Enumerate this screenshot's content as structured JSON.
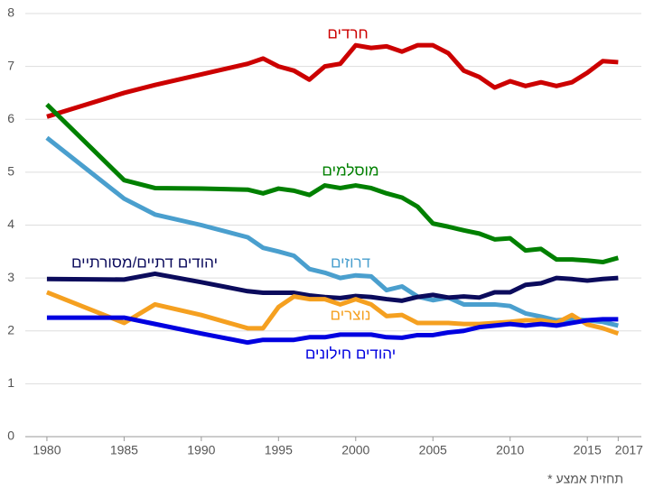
{
  "chart_data": {
    "type": "line",
    "x": [
      1980,
      1985,
      1987,
      1990,
      1993,
      1994,
      1995,
      1996,
      1997,
      1998,
      1999,
      2000,
      2001,
      2002,
      2003,
      2004,
      2005,
      2006,
      2007,
      2008,
      2009,
      2010,
      2011,
      2012,
      2013,
      2014,
      2015,
      2016,
      2017
    ],
    "series": [
      {
        "name": "חרדים",
        "color": "#cc0000",
        "values": [
          6.05,
          6.5,
          6.65,
          6.85,
          7.05,
          7.15,
          7.0,
          6.92,
          6.75,
          7.0,
          7.05,
          7.4,
          7.35,
          7.38,
          7.28,
          7.4,
          7.4,
          7.25,
          6.92,
          6.8,
          6.6,
          6.72,
          6.63,
          6.7,
          6.63,
          6.7,
          6.88,
          7.1,
          7.08
        ]
      },
      {
        "name": "מוסלמים",
        "color": "#008000",
        "values": [
          6.28,
          4.85,
          4.7,
          4.69,
          4.67,
          4.6,
          4.69,
          4.65,
          4.57,
          4.75,
          4.7,
          4.75,
          4.7,
          4.6,
          4.52,
          4.35,
          4.03,
          3.97,
          3.9,
          3.84,
          3.73,
          3.75,
          3.52,
          3.55,
          3.35,
          3.35,
          3.33,
          3.3,
          3.38
        ]
      },
      {
        "name": "דרוזים",
        "color": "#4a9fce",
        "values": [
          5.65,
          4.5,
          4.2,
          4.0,
          3.77,
          3.57,
          3.5,
          3.42,
          3.17,
          3.1,
          3.0,
          3.05,
          3.03,
          2.77,
          2.84,
          2.65,
          2.58,
          2.63,
          2.5,
          2.5,
          2.5,
          2.47,
          2.33,
          2.27,
          2.2,
          2.22,
          2.2,
          2.17,
          2.1
        ]
      },
      {
        "name": "יהודים דתיים/מסורתיים",
        "color": "#0b0b5c",
        "values": [
          2.98,
          2.97,
          3.08,
          2.92,
          2.75,
          2.72,
          2.72,
          2.72,
          2.67,
          2.64,
          2.62,
          2.66,
          2.64,
          2.6,
          2.57,
          2.64,
          2.68,
          2.63,
          2.65,
          2.63,
          2.73,
          2.73,
          2.87,
          2.9,
          3.0,
          2.98,
          2.95,
          2.98,
          3.0
        ]
      },
      {
        "name": "נוצרים",
        "color": "#f5a020",
        "values": [
          2.73,
          2.15,
          2.5,
          2.3,
          2.05,
          2.05,
          2.45,
          2.65,
          2.6,
          2.6,
          2.5,
          2.6,
          2.5,
          2.28,
          2.3,
          2.15,
          2.15,
          2.15,
          2.13,
          2.13,
          2.15,
          2.17,
          2.2,
          2.2,
          2.15,
          2.3,
          2.12,
          2.05,
          1.95
        ]
      },
      {
        "name": "יהודים חילונים",
        "color": "#0000e0",
        "values": [
          2.25,
          2.25,
          2.13,
          1.95,
          1.78,
          1.83,
          1.83,
          1.83,
          1.88,
          1.88,
          1.93,
          1.93,
          1.93,
          1.88,
          1.87,
          1.92,
          1.92,
          1.97,
          2.0,
          2.07,
          2.1,
          2.13,
          2.1,
          2.13,
          2.1,
          2.15,
          2.2,
          2.22,
          2.22
        ]
      }
    ],
    "xlim": [
      1978.6,
      2018.5
    ],
    "xticks": [
      1980,
      1985,
      1990,
      1995,
      2000,
      2005,
      2010,
      2015,
      2017
    ],
    "ylim": [
      0,
      8
    ],
    "yticks": [
      0,
      1,
      2,
      3,
      4,
      5,
      6,
      7,
      8
    ],
    "grid": true,
    "note": "* תחזית אמצע"
  }
}
